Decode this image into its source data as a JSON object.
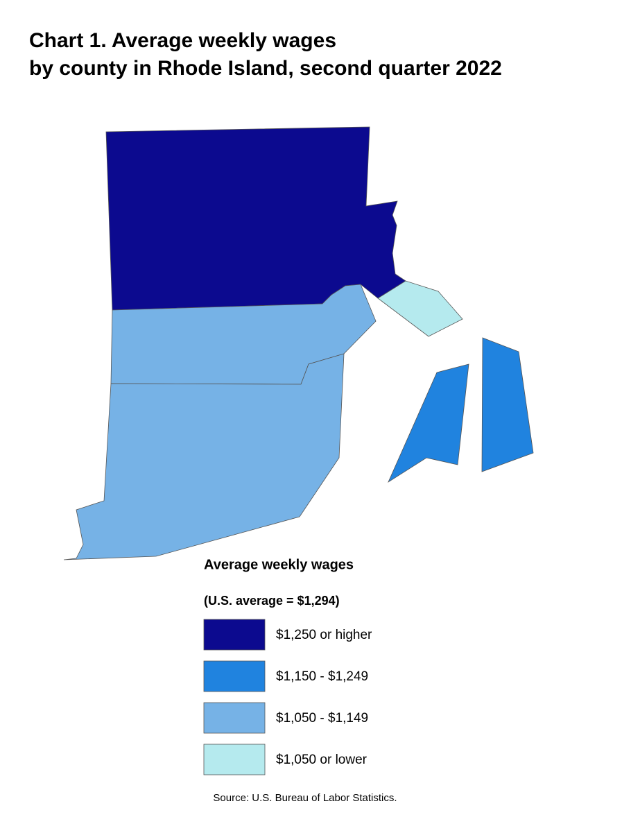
{
  "title": [
    "Chart 1. Average weekly wages",
    "by county in Rhode Island, second quarter 2022"
  ],
  "legend": {
    "title": "Average weekly wages",
    "subtitle": "(U.S. average = $1,294)",
    "items": [
      {
        "label": "$1,250 or higher",
        "color": "#0c0a8f"
      },
      {
        "label": "$1,150 - $1,249",
        "color": "#2083df"
      },
      {
        "label": "$1,050 - $1,149",
        "color": "#76b2e6"
      },
      {
        "label": "$1,050 or lower",
        "color": "#b5eaee"
      }
    ]
  },
  "source": "Source: U.S. Bureau of Labor Statistics."
}
